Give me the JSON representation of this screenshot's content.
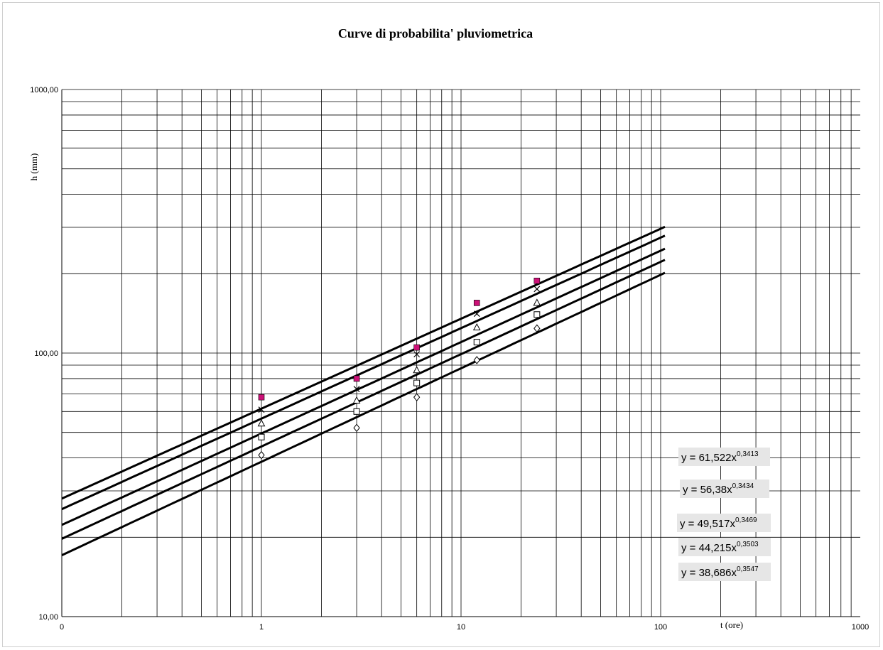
{
  "chart_data": {
    "type": "scatter",
    "title": "Curve di probabilita' pluviometrica",
    "xlabel": "t (ore)",
    "ylabel": "h (mm)",
    "xscale": "log",
    "yscale": "log",
    "xlim": [
      0.1,
      1000
    ],
    "ylim": [
      10,
      1000
    ],
    "x_tick_labels": [
      "0",
      "1",
      "10",
      "100",
      "1000"
    ],
    "y_tick_labels": [
      "10,00",
      "100,00",
      "1000,00"
    ],
    "grid": true,
    "legend": "none",
    "series": [
      {
        "marker": "filled-square",
        "color": "#cc1177",
        "x": [
          1,
          3,
          6,
          12,
          24
        ],
        "y": [
          68,
          80,
          105,
          155,
          188
        ]
      },
      {
        "marker": "x",
        "color": "#000000",
        "x": [
          1,
          3,
          6,
          12,
          24
        ],
        "y": [
          61,
          73,
          99,
          141,
          175
        ]
      },
      {
        "marker": "triangle",
        "color": "#000000",
        "x": [
          1,
          3,
          6,
          12,
          24
        ],
        "y": [
          54,
          66,
          86,
          125,
          155
        ]
      },
      {
        "marker": "square",
        "color": "#000000",
        "x": [
          1,
          3,
          6,
          12,
          24
        ],
        "y": [
          48,
          60,
          77,
          110,
          140
        ]
      },
      {
        "marker": "diamond",
        "color": "#000000",
        "x": [
          1,
          3,
          6,
          12,
          24
        ],
        "y": [
          41,
          52,
          68,
          94,
          124
        ]
      }
    ],
    "trendlines": [
      {
        "type": "power",
        "a": 61.522,
        "b": 0.3413,
        "label": "y = 61,522x",
        "exponent": "0,3413"
      },
      {
        "type": "power",
        "a": 56.38,
        "b": 0.3434,
        "label": "y = 56,38x",
        "exponent": "0,3434"
      },
      {
        "type": "power",
        "a": 49.517,
        "b": 0.3469,
        "label": "y = 49,517x",
        "exponent": "0,3469"
      },
      {
        "type": "power",
        "a": 44.215,
        "b": 0.3503,
        "label": "y = 44,215x",
        "exponent": "0,3503"
      },
      {
        "type": "power",
        "a": 38.686,
        "b": 0.3547,
        "label": "y = 38,686x",
        "exponent": "0,3547"
      }
    ],
    "trendline_range": [
      0.1,
      105
    ]
  }
}
